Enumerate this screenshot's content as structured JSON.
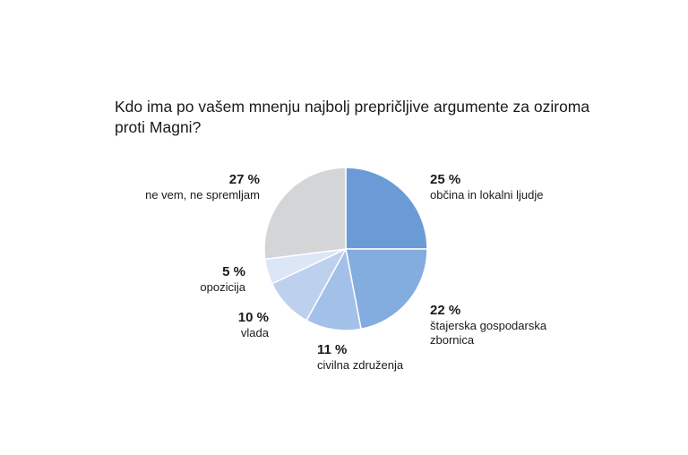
{
  "chart_data": {
    "type": "pie",
    "title": "Kdo ima po vašem mnenju najbolj prepričljive argumente za oziroma proti Magni?",
    "unit": "%",
    "slices": [
      {
        "label": "občina in lokalni ljudje",
        "value": 25,
        "value_label": "25 %",
        "color": "#6b9bd6"
      },
      {
        "label": "štajerska gospodarska zbornica",
        "value": 22,
        "value_label": "22 %",
        "color": "#83acdf"
      },
      {
        "label": "civilna združenja",
        "value": 11,
        "value_label": "11 %",
        "color": "#a3c0e8"
      },
      {
        "label": "vlada",
        "value": 10,
        "value_label": "10 %",
        "color": "#bdd1ef"
      },
      {
        "label": "opozicija",
        "value": 5,
        "value_label": "5 %",
        "color": "#dbe6f7"
      },
      {
        "label": "ne vem, ne spremljam",
        "value": 27,
        "value_label": "27 %",
        "color": "#d4d5d7"
      }
    ]
  }
}
